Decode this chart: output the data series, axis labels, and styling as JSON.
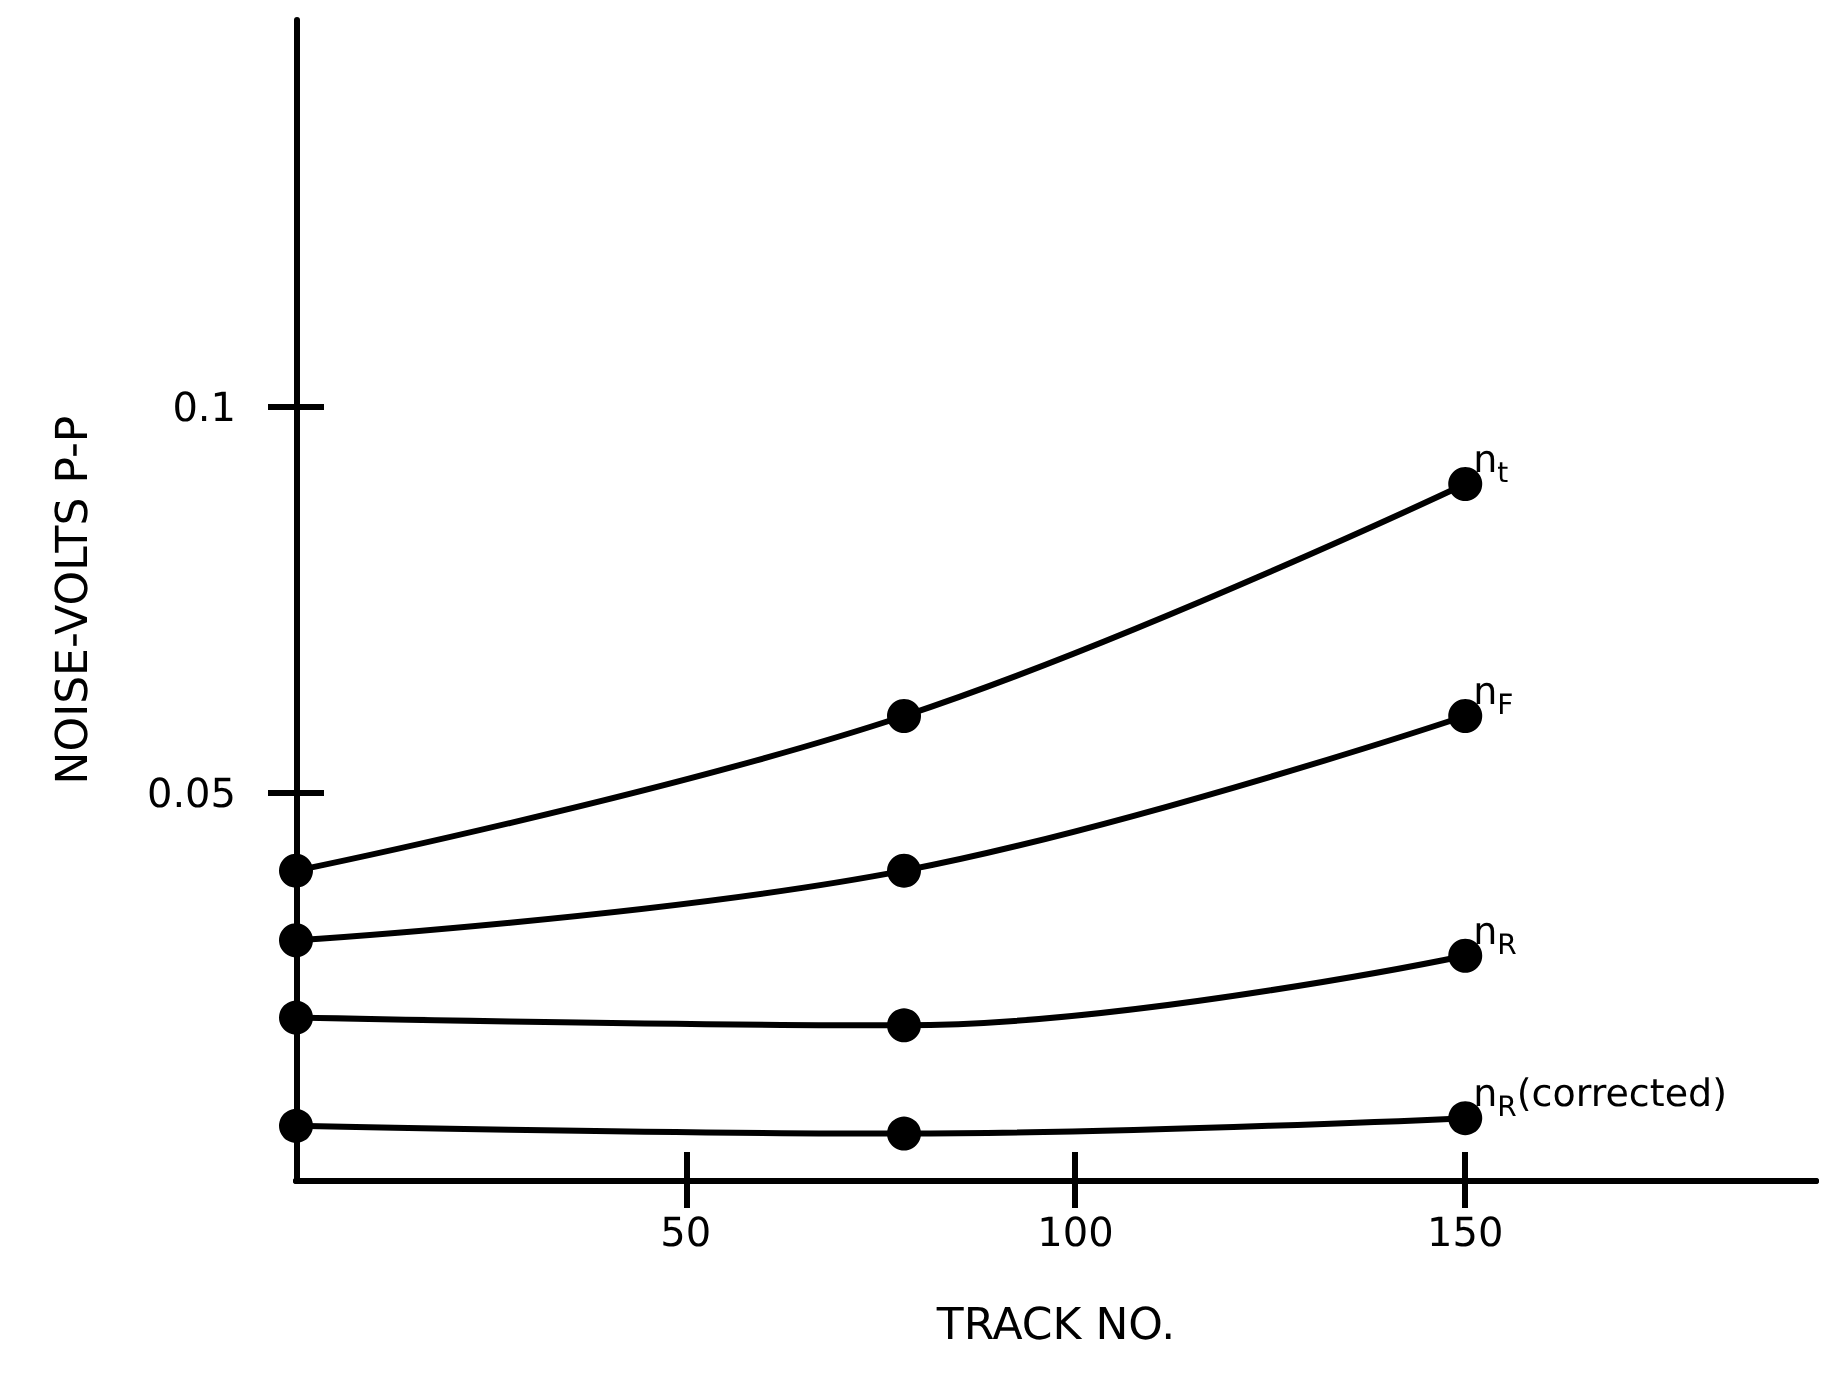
{
  "chart_data": {
    "type": "line",
    "xlabel": "TRACK NO.",
    "ylabel": "NOISE-VOLTS P-P",
    "x": [
      0,
      78,
      150
    ],
    "series": [
      {
        "name": "n$_{t}$",
        "color": "#000000",
        "values": [
          0.04,
          0.06,
          0.09
        ]
      },
      {
        "name": "n$_{F}$",
        "color": "#000000",
        "values": [
          0.031,
          0.04,
          0.06
        ]
      },
      {
        "name": "n$_{R}$",
        "color": "#000000",
        "values": [
          0.021,
          0.02,
          0.029
        ]
      },
      {
        "name": "n$_{R}$(corrected)",
        "color": "#000000",
        "values": [
          0.007,
          0.006,
          0.008
        ]
      }
    ],
    "xlim": [
      0,
      195
    ],
    "ylim": [
      0,
      0.15
    ],
    "xticks": [
      50,
      100,
      150
    ],
    "yticks": [
      0.05,
      0.1
    ],
    "grid": false,
    "legend": false,
    "marker": "circle",
    "line_style": "solid"
  }
}
